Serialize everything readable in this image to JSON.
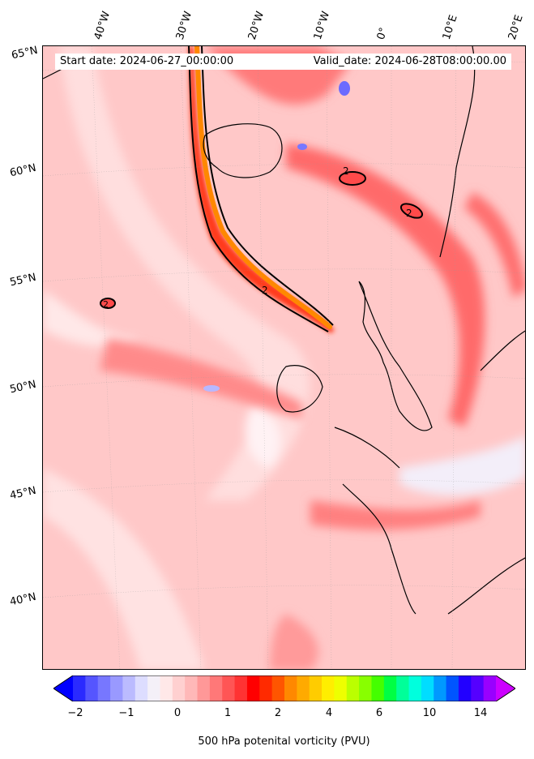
{
  "map": {
    "info": {
      "start_date": "Start date: 2024-06-27_00:00:00",
      "valid_date": "Valid_date: 2024-06-28T08:00:00.00"
    },
    "longitude_labels": [
      "40°W",
      "30°W",
      "20°W",
      "10°W",
      "0°",
      "10°E",
      "20°E"
    ],
    "latitude_labels": [
      "65°N",
      "60°N",
      "55°N",
      "50°N",
      "45°N",
      "40°N"
    ],
    "contour_label": "2"
  },
  "colorbar": {
    "ticks": [
      "−2",
      "−1",
      "0",
      "1",
      "2",
      "4",
      "6",
      "10",
      "14"
    ],
    "title": "500 hPa potenital vorticity (PVU)",
    "colors": [
      "#0000ff",
      "#2a2aff",
      "#5555ff",
      "#7777ff",
      "#9999ff",
      "#bbbbff",
      "#ddddff",
      "#f4f0f8",
      "#ffe8e8",
      "#ffd0d0",
      "#ffb8b8",
      "#ff9898",
      "#ff7878",
      "#ff5555",
      "#ff3333",
      "#ff0000",
      "#ff2a00",
      "#ff5500",
      "#ff8800",
      "#ffaa00",
      "#ffcc00",
      "#ffee00",
      "#eeff00",
      "#bbff00",
      "#88ff00",
      "#44ff00",
      "#00ff44",
      "#00ff99",
      "#00ffdd",
      "#00ddff",
      "#0099ff",
      "#0055ff",
      "#2200ff",
      "#5500ff",
      "#9900ff",
      "#cc00ff"
    ]
  },
  "colors": {
    "background_pv": "#ffc2c2",
    "high_pv": "#ff5a5a",
    "streamer_core": "#ff8800",
    "negative_pv": "#6b6bff"
  }
}
